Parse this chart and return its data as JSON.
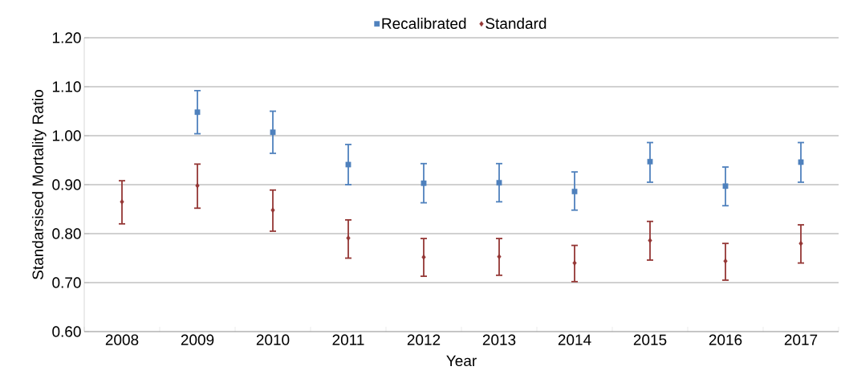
{
  "chart_data": {
    "type": "scatter",
    "xlabel": "Year",
    "ylabel": "Standarsised Mortality Ratio",
    "categories": [
      "2008",
      "2009",
      "2010",
      "2011",
      "2012",
      "2013",
      "2014",
      "2015",
      "2016",
      "2017"
    ],
    "series": [
      {
        "name": "Recalibrated",
        "color": "#4f81bd",
        "marker": "square",
        "values": [
          null,
          1.048,
          1.007,
          0.941,
          0.903,
          0.904,
          0.886,
          0.947,
          0.897,
          0.946
        ],
        "errors": [
          null,
          [
            1.004,
            1.092
          ],
          [
            0.964,
            1.05
          ],
          [
            0.9,
            0.982
          ],
          [
            0.863,
            0.943
          ],
          [
            0.865,
            0.943
          ],
          [
            0.848,
            0.926
          ],
          [
            0.905,
            0.986
          ],
          [
            0.857,
            0.936
          ],
          [
            0.905,
            0.986
          ]
        ]
      },
      {
        "name": "Standard",
        "color": "#943634",
        "marker": "diamond",
        "values": [
          0.865,
          0.898,
          0.848,
          0.791,
          0.752,
          0.753,
          0.74,
          0.786,
          0.744,
          0.78
        ],
        "errors": [
          [
            0.82,
            0.908
          ],
          [
            0.852,
            0.942
          ],
          [
            0.805,
            0.889
          ],
          [
            0.75,
            0.828
          ],
          [
            0.713,
            0.79
          ],
          [
            0.715,
            0.79
          ],
          [
            0.702,
            0.776
          ],
          [
            0.746,
            0.825
          ],
          [
            0.705,
            0.78
          ],
          [
            0.74,
            0.818
          ]
        ]
      }
    ],
    "ylim": [
      0.6,
      1.2
    ],
    "yticks": [
      {
        "value": 0.6,
        "label": "0.60"
      },
      {
        "value": 0.7,
        "label": "0.70"
      },
      {
        "value": 0.8,
        "label": "0.80"
      },
      {
        "value": 0.9,
        "label": "0.90"
      },
      {
        "value": 1.0,
        "label": "1.00"
      },
      {
        "value": 1.1,
        "label": "1.10"
      },
      {
        "value": 1.2,
        "label": "1.20"
      }
    ],
    "grid": "y",
    "legend": "top",
    "line_style": "none"
  }
}
